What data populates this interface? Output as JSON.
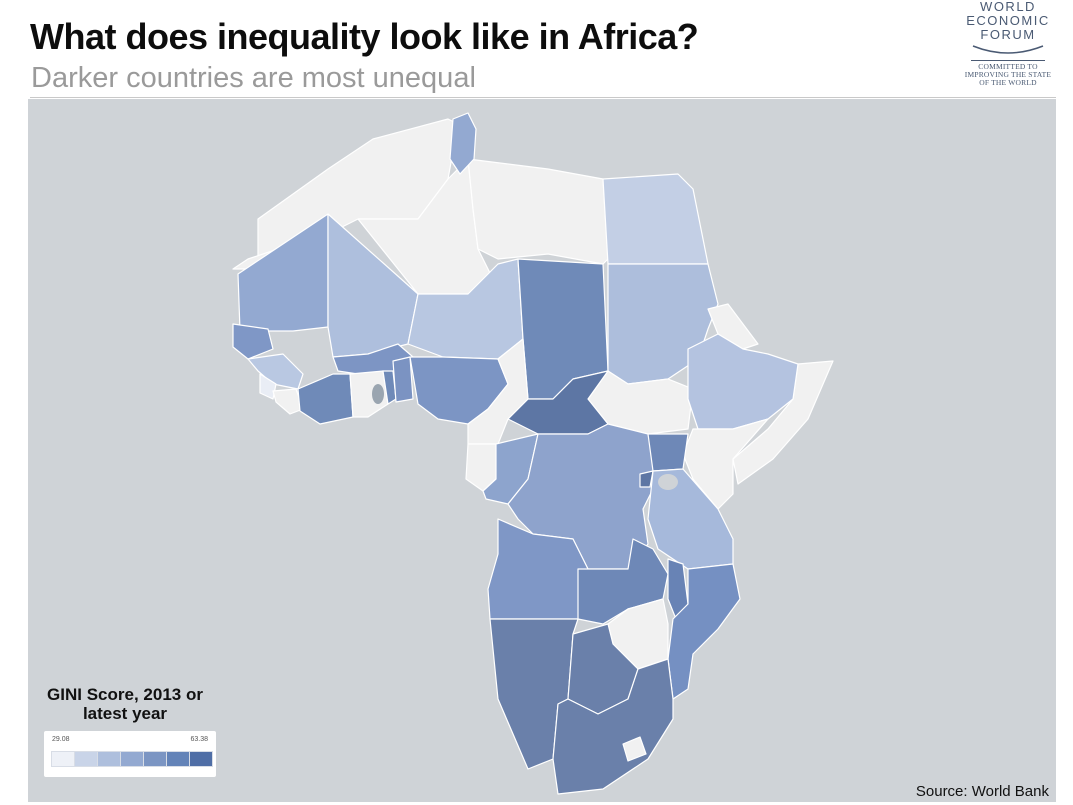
{
  "header": {
    "title": "What does inequality look like in Africa?",
    "subtitle": "Darker countries are most unequal"
  },
  "logo": {
    "line1": "WORLD",
    "line2": "ECONOMIC",
    "line3": "FORUM",
    "tag1": "COMMITTED TO",
    "tag2": "IMPROVING THE STATE",
    "tag3": "OF THE WORLD"
  },
  "legend": {
    "title": "GINI Score, 2013 or latest year",
    "min": "29.08",
    "max": "63.38",
    "scale_colors": [
      "#eef1f7",
      "#c9d4e8",
      "#aebfdd",
      "#93a9d1",
      "#7b95c3",
      "#6383b8",
      "#4f6ea6"
    ]
  },
  "source": "Source: World Bank",
  "colors": {
    "sea": "#cfd3d7",
    "no_data": "#f1f1f1",
    "border": "#ffffff"
  },
  "icons": {
    "map": "africa-choropleth-map",
    "logo": "wef-globe-logo"
  }
}
